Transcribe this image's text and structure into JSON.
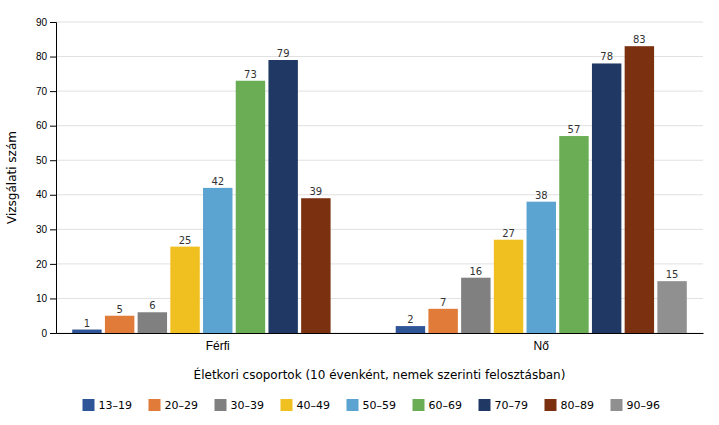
{
  "chart_data": {
    "type": "bar",
    "categories": [
      "Férfi",
      "Nő"
    ],
    "series": [
      {
        "name": "13–19",
        "color": "#2e5597",
        "values": [
          1,
          2
        ]
      },
      {
        "name": "20–29",
        "color": "#e07b39",
        "values": [
          5,
          7
        ]
      },
      {
        "name": "30–39",
        "color": "#808080",
        "values": [
          6,
          16
        ]
      },
      {
        "name": "40–49",
        "color": "#f0c020",
        "values": [
          25,
          27
        ]
      },
      {
        "name": "50–59",
        "color": "#5ba3d0",
        "values": [
          42,
          38
        ]
      },
      {
        "name": "60–69",
        "color": "#6aad54",
        "values": [
          73,
          57
        ]
      },
      {
        "name": "70–79",
        "color": "#1f3864",
        "values": [
          79,
          78
        ]
      },
      {
        "name": "80–89",
        "color": "#7b3010",
        "values": [
          39,
          83
        ]
      },
      {
        "name": "90–96",
        "color": "#909090",
        "values": [
          null,
          15
        ]
      }
    ],
    "xlabel": "Életkori csoportok (10 évenként, nemek szerinti felosztásban)",
    "ylabel": "Vizsgálati szám",
    "ylim": [
      0,
      90
    ],
    "yticks": [
      0,
      10,
      20,
      30,
      40,
      50,
      60,
      70,
      80,
      90
    ],
    "grid": true,
    "data_labels": true,
    "legend": "bottom"
  }
}
